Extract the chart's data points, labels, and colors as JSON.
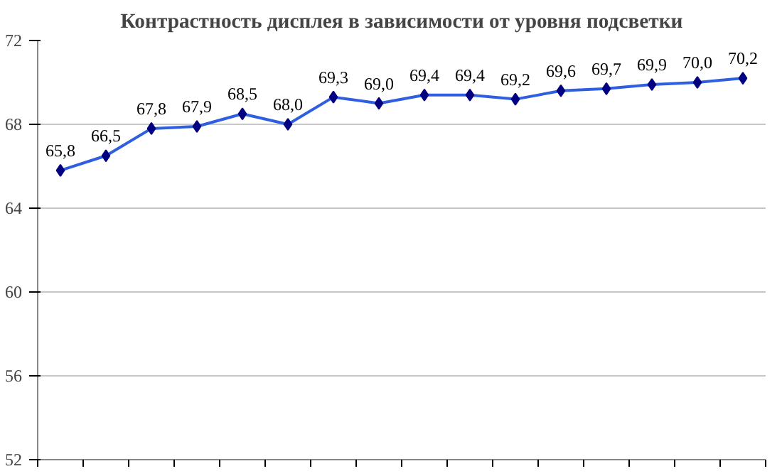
{
  "chart_data": {
    "type": "line",
    "title": "Контрастность дисплея в зависимости от уровня подсветки",
    "categories": [
      null,
      null,
      null,
      null,
      null,
      null,
      null,
      null,
      null,
      null,
      null,
      null,
      null,
      null,
      null,
      null
    ],
    "series": [
      {
        "color": "#2f5fe0",
        "values": [
          65.8,
          66.5,
          67.8,
          67.9,
          68.5,
          68.0,
          69.3,
          69.0,
          69.4,
          69.4,
          69.2,
          69.6,
          69.7,
          69.9,
          70.0,
          70.2
        ],
        "value_labels": [
          "65,8",
          "66,5",
          "67,8",
          "67,9",
          "68,5",
          "68,0",
          "69,3",
          "69,0",
          "69,4",
          "69,4",
          "69,2",
          "69,6",
          "69,7",
          "69,9",
          "70,0",
          "70,2"
        ]
      }
    ],
    "ylim": [
      52,
      72
    ],
    "yticks": [
      52,
      56,
      60,
      64,
      68,
      72
    ],
    "grid": "y",
    "marker": "diamond",
    "line_style": "solid"
  }
}
